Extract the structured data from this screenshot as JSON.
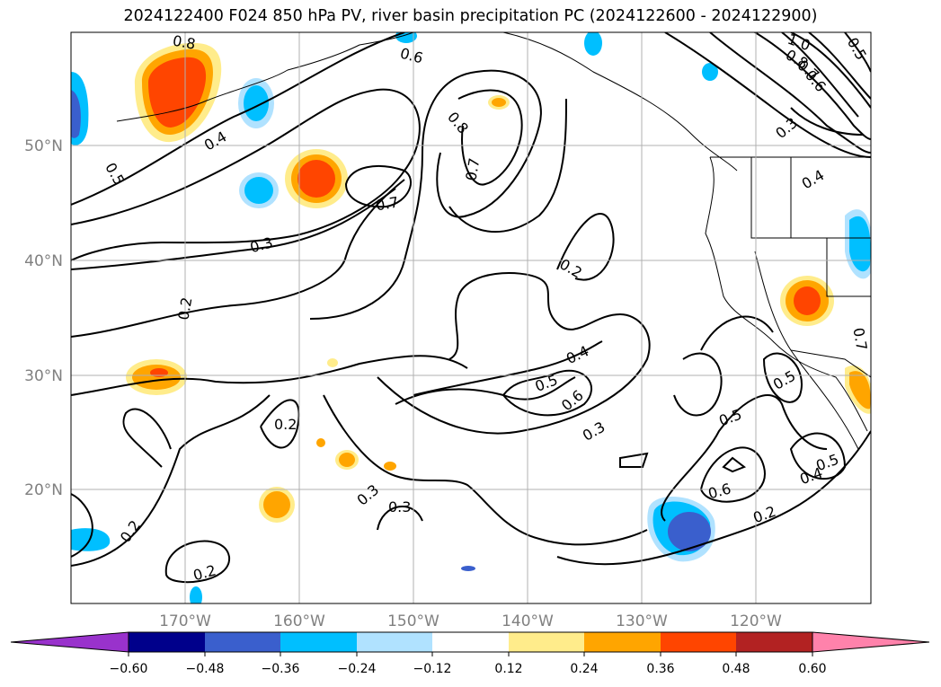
{
  "title": "2024122400 F024 850 hPa PV, river basin precipitation PC (2024122600 - 2024122900)",
  "map": {
    "lon_ticks": [
      "170°W",
      "160°W",
      "150°W",
      "140°W",
      "130°W",
      "120°W"
    ],
    "lat_ticks": [
      "50°N",
      "40°N",
      "30°N",
      "20°N"
    ],
    "contour_labels": [
      "0.8",
      "0.7",
      "0.6",
      "0.5",
      "0.4",
      "0.3",
      "0.2",
      "1.0",
      "0.8",
      "0.7",
      "0.6",
      "0.5",
      "0.3",
      "0.4",
      "0.8",
      "0.7",
      "0.2",
      "0.4",
      "0.5",
      "0.6",
      "0.3",
      "0.2",
      "0.3",
      "0.3",
      "0.2",
      "0.2",
      "0.5",
      "0.6",
      "0.2",
      "0.4",
      "0.5",
      "0.5",
      "0.7"
    ]
  },
  "colorbar": {
    "colors": [
      "#9932cc",
      "#00008b",
      "#3a5fcd",
      "#00bfff",
      "#b0e2ff",
      "#ffffff",
      "#ffec8b",
      "#ffa500",
      "#ff4500",
      "#b22222",
      "#ff82ab"
    ],
    "tick_labels": [
      "−0.60",
      "−0.48",
      "−0.36",
      "−0.24",
      "−0.12",
      "0.12",
      "0.24",
      "0.36",
      "0.48",
      "0.60"
    ]
  },
  "colors": {
    "contour": "#000000",
    "grid": "#b0b0b0",
    "tick_text": "#808080"
  }
}
